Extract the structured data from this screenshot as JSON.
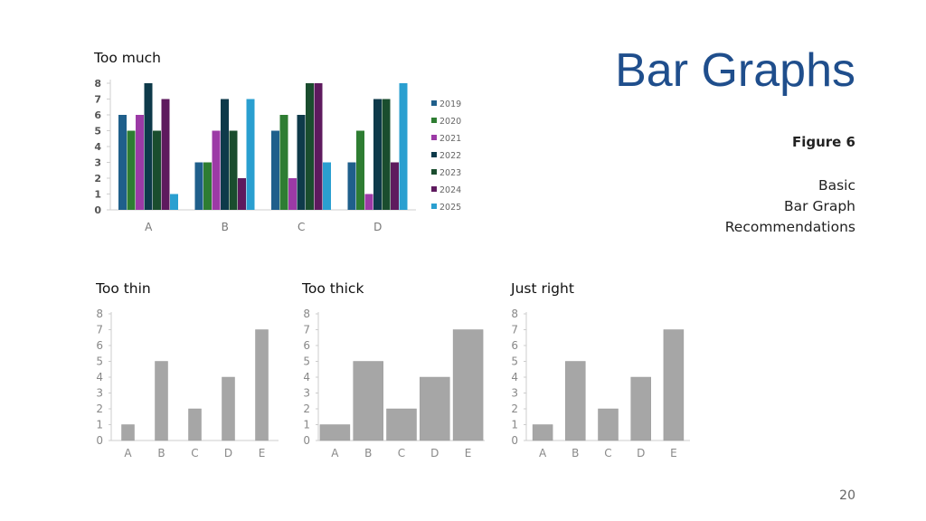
{
  "slide": {
    "title": "Bar Graphs",
    "figure_label": "Figure 6",
    "caption_lines": [
      "Basic",
      "Bar Graph",
      "Recommendations"
    ],
    "page_number": "20"
  },
  "chart_data": [
    {
      "type": "bar",
      "title": "Too much",
      "categories": [
        "A",
        "B",
        "C",
        "D"
      ],
      "yticks": [
        "0",
        "1",
        "2",
        "3",
        "4",
        "5",
        "6",
        "7",
        "8"
      ],
      "ylim": [
        0,
        8
      ],
      "grid": false,
      "legend_position": "right",
      "series": [
        {
          "name": "2019",
          "color": "#1f5f8b",
          "values": [
            6,
            3,
            5,
            3
          ]
        },
        {
          "name": "2020",
          "color": "#2e7d32",
          "values": [
            5,
            3,
            6,
            5
          ]
        },
        {
          "name": "2021",
          "color": "#9c3aa6",
          "values": [
            6,
            5,
            2,
            1
          ]
        },
        {
          "name": "2022",
          "color": "#0e3a4a",
          "values": [
            8,
            7,
            6,
            7
          ]
        },
        {
          "name": "2023",
          "color": "#1a4d2e",
          "values": [
            5,
            5,
            8,
            7
          ]
        },
        {
          "name": "2024",
          "color": "#5e1a5e",
          "values": [
            7,
            2,
            8,
            3
          ]
        },
        {
          "name": "2025",
          "color": "#2a9fd0",
          "values": [
            1,
            7,
            3,
            8
          ]
        }
      ]
    },
    {
      "type": "bar",
      "title": "Too thin",
      "categories": [
        "A",
        "B",
        "C",
        "D",
        "E"
      ],
      "values": [
        1,
        5,
        2,
        4,
        7
      ],
      "yticks": [
        "0",
        "1",
        "2",
        "3",
        "4",
        "5",
        "6",
        "7",
        "8"
      ],
      "ylim": [
        0,
        8
      ],
      "grid": false,
      "color": "#a6a6a6"
    },
    {
      "type": "bar",
      "title": "Too thick",
      "categories": [
        "A",
        "B",
        "C",
        "D",
        "E"
      ],
      "values": [
        1,
        5,
        2,
        4,
        7
      ],
      "yticks": [
        "0",
        "1",
        "2",
        "3",
        "4",
        "5",
        "6",
        "7",
        "8"
      ],
      "ylim": [
        0,
        8
      ],
      "grid": false,
      "color": "#a6a6a6"
    },
    {
      "type": "bar",
      "title": "Just right",
      "categories": [
        "A",
        "B",
        "C",
        "D",
        "E"
      ],
      "values": [
        1,
        5,
        2,
        4,
        7
      ],
      "yticks": [
        "0",
        "1",
        "2",
        "3",
        "4",
        "5",
        "6",
        "7",
        "8"
      ],
      "ylim": [
        0,
        8
      ],
      "grid": false,
      "color": "#a6a6a6"
    }
  ]
}
